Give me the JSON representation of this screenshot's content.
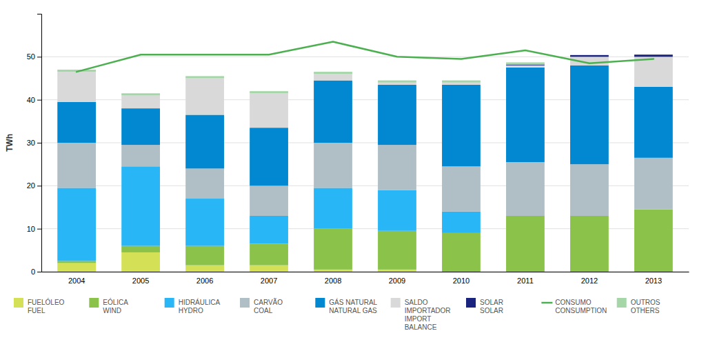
{
  "chart_data": {
    "type": "bar",
    "stacked": true,
    "grid": true,
    "legend": "bottom",
    "y_label": "TWh",
    "categories": [
      "2004",
      "2005",
      "2006",
      "2007",
      "2008",
      "2009",
      "2010",
      "2011",
      "2012",
      "2013"
    ],
    "series": [
      {
        "name": "FUELÓLEO\nFUEL",
        "color": "#d4e157",
        "values": [
          2.0,
          4.5,
          1.5,
          1.5,
          0.5,
          0.5,
          0.0,
          0.0,
          0.0,
          0.0
        ]
      },
      {
        "name": "EÓLICA\nWIND",
        "color": "#8bc34a",
        "values": [
          0.5,
          1.5,
          4.5,
          5.0,
          9.5,
          9.0,
          9.0,
          13.0,
          13.0,
          14.5
        ]
      },
      {
        "name": "HIDRÁULICA\nHYDRO",
        "color": "#29b6f6",
        "values": [
          17.0,
          18.5,
          11.0,
          6.5,
          9.5,
          9.5,
          5.0,
          0.0,
          0.0,
          0.0
        ]
      },
      {
        "name": "CARVÃO\nCOAL",
        "color": "#b0bec5",
        "values": [
          10.5,
          5.0,
          7.0,
          7.0,
          10.5,
          10.5,
          10.5,
          12.5,
          12.0,
          12.0
        ]
      },
      {
        "name": "GÁS NATURAL\nNATURAL GAS",
        "color": "#0288d1",
        "values": [
          9.5,
          8.5,
          12.5,
          13.5,
          14.5,
          14.0,
          19.0,
          22.0,
          23.0,
          16.5
        ]
      },
      {
        "name": "SALDO\nIMPORTADOR\nIMPORT\nBALANCE",
        "color": "#d9d9d9",
        "values": [
          7.0,
          3.0,
          8.5,
          8.0,
          1.5,
          0.5,
          0.5,
          0.5,
          2.0,
          7.0
        ]
      },
      {
        "name": "SOLAR\nSOLAR",
        "color": "#1a237e",
        "values": [
          0.0,
          0.0,
          0.0,
          0.0,
          0.0,
          0.0,
          0.0,
          0.2,
          0.4,
          0.5
        ]
      },
      {
        "name": "CONSUMO\nCONSUMPTION",
        "color": "#4caf50",
        "type": "line",
        "values": [
          46.5,
          50.5,
          50.5,
          50.5,
          53.5,
          50.0,
          49.5,
          51.5,
          48.5,
          49.5
        ]
      },
      {
        "name": "OUTROS\nOTHERS",
        "color": "#a5d6a7",
        "values": [
          0.5,
          0.5,
          0.5,
          0.5,
          0.5,
          0.5,
          0.5,
          0.5,
          0.0,
          0.0
        ]
      }
    ],
    "ylim": [
      0,
      60
    ],
    "yticks": [
      0,
      10,
      20,
      30,
      40,
      50
    ]
  }
}
